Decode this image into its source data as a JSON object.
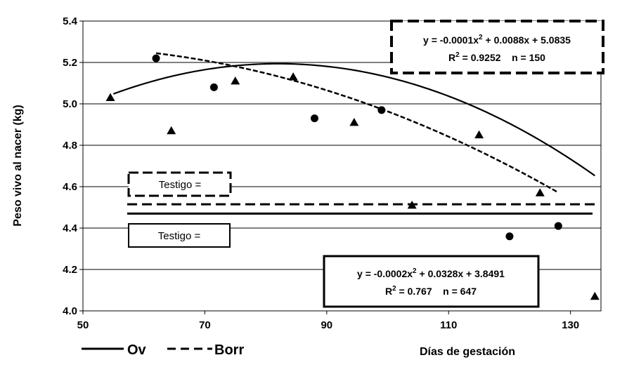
{
  "chart_data": {
    "type": "scatter",
    "xlabel": "Días de gestación",
    "ylabel": "Peso vivo al nacer (kg)",
    "xlim": [
      50,
      135
    ],
    "ylim": [
      4.0,
      5.4
    ],
    "xticks": [
      "50",
      "70",
      "90",
      "110",
      "130"
    ],
    "yticks": [
      "4.0",
      "4.2",
      "4.4",
      "4.6",
      "4.8",
      "5.0",
      "5.2",
      "5.4"
    ],
    "grid": "horizontal",
    "legend": [
      {
        "label": "Ov",
        "style": "solid"
      },
      {
        "label": "Borr",
        "style": "dashed"
      }
    ],
    "series": [
      {
        "name": "Ov",
        "marker": "triangle",
        "points": [
          [
            54.5,
            5.03
          ],
          [
            64.5,
            4.87
          ],
          [
            75,
            5.11
          ],
          [
            84.5,
            5.13
          ],
          [
            94.5,
            4.91
          ],
          [
            104,
            4.51
          ],
          [
            115,
            4.85
          ],
          [
            125,
            4.57
          ],
          [
            134,
            4.07
          ]
        ],
        "fit": {
          "a": -0.0002,
          "b": 0.0328,
          "c": 3.8491,
          "x_range": [
            55,
            134
          ]
        },
        "testigo": 4.47
      },
      {
        "name": "Borr",
        "marker": "circle",
        "points": [
          [
            62,
            5.22
          ],
          [
            71.5,
            5.08
          ],
          [
            88,
            4.93
          ],
          [
            99,
            4.97
          ],
          [
            120,
            4.36
          ],
          [
            128,
            4.41
          ]
        ],
        "fit": {
          "a": -0.0001,
          "b": 0.0088,
          "c": 5.0835,
          "x_range": [
            62,
            128
          ]
        },
        "testigo": 4.515
      }
    ],
    "annotations": {
      "borr_eq_line1": "y = -0.0001x",
      "borr_eq_line1_rest": " + 0.0088x + 5.0835",
      "borr_r2_value": " = 0.9252    n = 150",
      "ov_eq_line1": "y = -0.0002x",
      "ov_eq_line1_rest": " + 0.0328x + 3.8491",
      "ov_r2_value": " = 0.767    n = 647",
      "r_symbol": "R",
      "superscript": "2",
      "testigo_borr": "Testigo =",
      "testigo_ov": "Testigo ="
    }
  }
}
